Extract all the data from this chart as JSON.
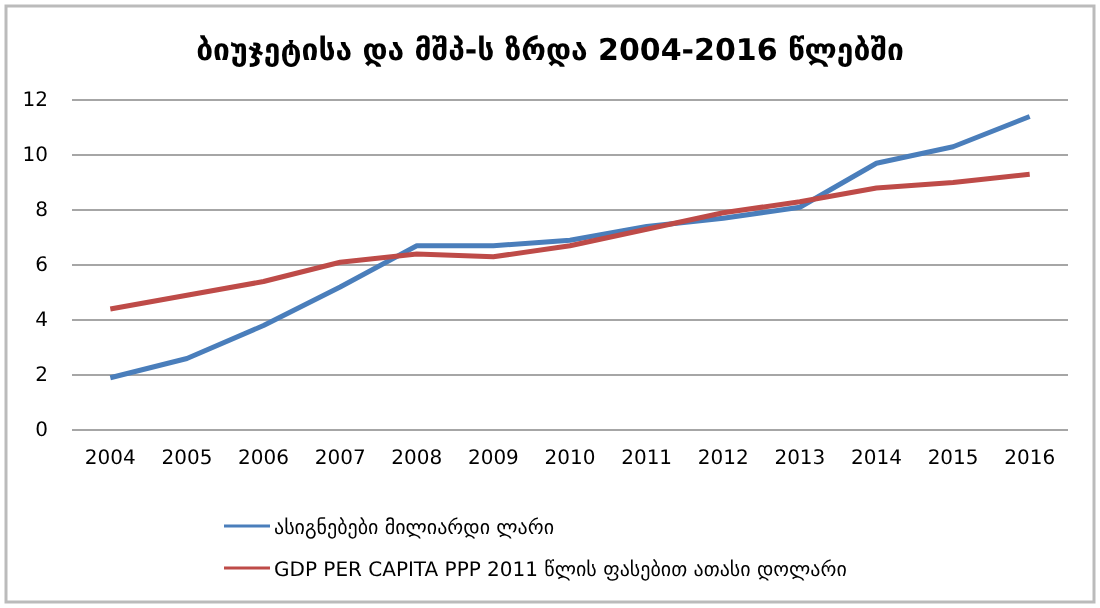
{
  "chart_data": {
    "type": "line",
    "title": "ბიუჯეტისა და მშპ-ს ზრდა 2004-2016 წლებში",
    "categories": [
      "2004",
      "2005",
      "2006",
      "2007",
      "2008",
      "2009",
      "2010",
      "2011",
      "2012",
      "2013",
      "2014",
      "2015",
      "2016"
    ],
    "series": [
      {
        "name": "ასიგნებები მილიარდი ლარი",
        "color": "#4a7ebb",
        "values": [
          1.9,
          2.6,
          3.8,
          5.2,
          6.7,
          6.7,
          6.9,
          7.4,
          7.7,
          8.1,
          9.7,
          10.3,
          11.4
        ]
      },
      {
        "name": "GDP PER CAPITA PPP 2011 წლის ფასებით ათასი დოლარი",
        "color": "#be4b48",
        "values": [
          4.4,
          4.9,
          5.4,
          6.1,
          6.4,
          6.3,
          6.7,
          7.3,
          7.9,
          8.3,
          8.8,
          9.0,
          9.3
        ]
      }
    ],
    "ylim": [
      0,
      12
    ],
    "yticks": [
      0,
      2,
      4,
      6,
      8,
      10,
      12
    ],
    "grid": "y",
    "legend": "bottom",
    "marker": "none",
    "line_style": "solid"
  }
}
